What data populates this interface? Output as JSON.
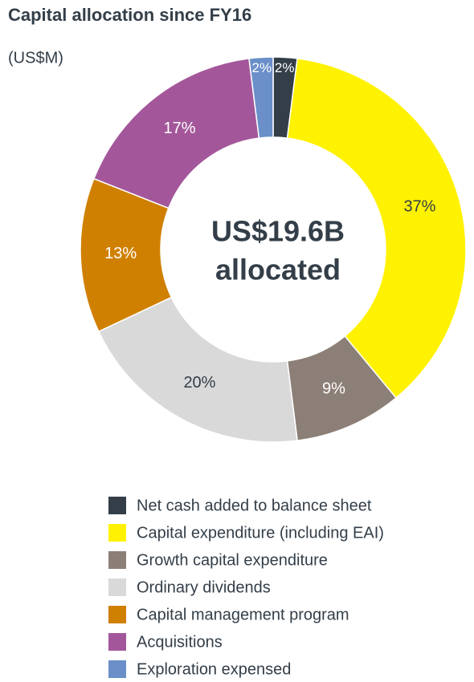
{
  "chart_data": {
    "type": "donut",
    "title": "Capital allocation since FY16",
    "subtitle": "(US$M)",
    "center_text": [
      "US$19.6B",
      "allocated"
    ],
    "categories": [
      "Net cash added to balance sheet",
      "Capital expenditure (including EAI)",
      "Growth capital expenditure",
      "Ordinary dividends",
      "Capital management program",
      "Acquisitions",
      "Exploration expensed"
    ],
    "values": [
      2,
      37,
      9,
      20,
      13,
      17,
      2
    ],
    "value_labels": [
      "2%",
      "37%",
      "9%",
      "20%",
      "13%",
      "17%",
      "2%"
    ],
    "colors": [
      "#333e48",
      "#fff200",
      "#8c7f77",
      "#d9d9d9",
      "#d08000",
      "#a3579a",
      "#6a8fc9"
    ]
  }
}
